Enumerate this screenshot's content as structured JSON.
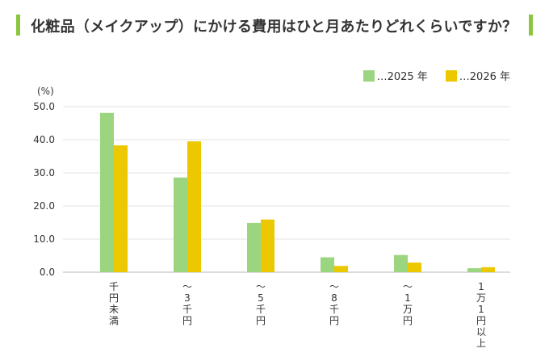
{
  "title": "化粧品（メイクアップ）にかける費用はひと月あたりどれくらいですか？",
  "colors": {
    "accent": "#8cc63f",
    "series2025": "#9cd580",
    "series2026": "#ecc800",
    "grid": "#e3e3e3"
  },
  "chart_data": {
    "type": "bar",
    "title": "化粧品（メイクアップ）にかける費用はひと月あたりどれくらいですか？",
    "ylabel": "(%)",
    "ylim": [
      0,
      50
    ],
    "yticks": [
      "0.0",
      "10.0",
      "20.0",
      "30.0",
      "40.0",
      "50.0"
    ],
    "grid": true,
    "legend_position": "top-right",
    "categories": [
      "千円未満",
      "〜3千円",
      "〜5千円",
      "〜8千円",
      "〜1万円",
      "1万1円以上"
    ],
    "series": [
      {
        "name": "…2025 年",
        "color": "#9cd580",
        "values": [
          48.1,
          28.6,
          14.9,
          4.5,
          5.2,
          1.2
        ]
      },
      {
        "name": "…2026 年",
        "color": "#ecc800",
        "values": [
          38.3,
          39.5,
          15.9,
          1.9,
          2.9,
          1.5
        ]
      }
    ]
  }
}
